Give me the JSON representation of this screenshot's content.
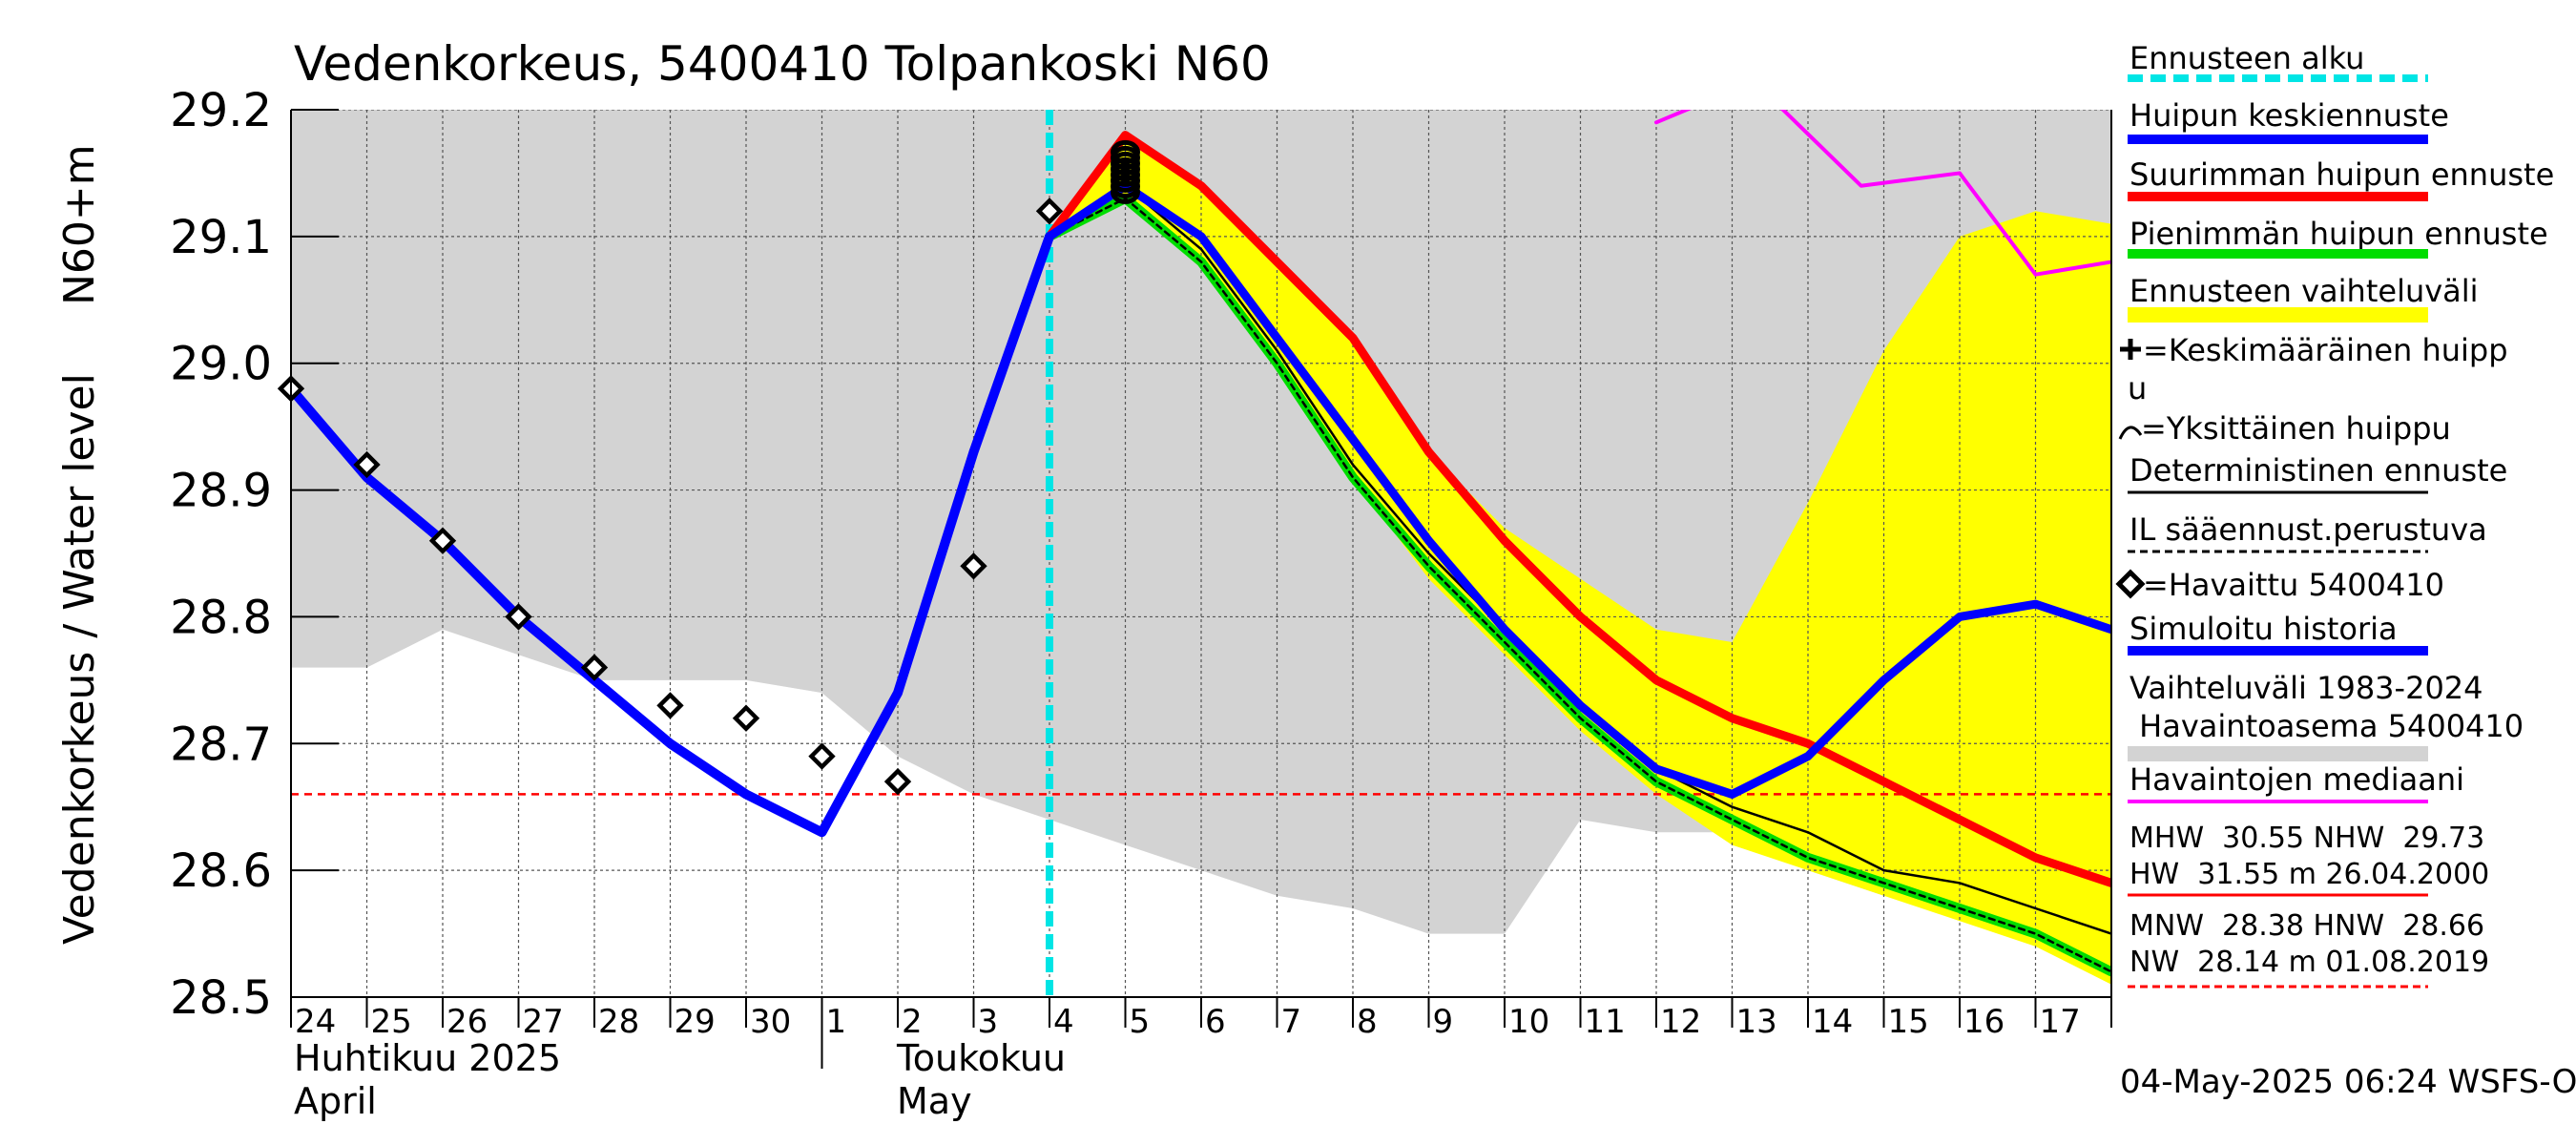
{
  "chart_data": {
    "type": "line",
    "title": "Vedenkorkeus, 5400410 Tolpankoski N60",
    "ylabel_main": "Vedenkorkeus / Water level",
    "ylabel_unit": "N60+m",
    "ylim": [
      28.5,
      29.2
    ],
    "xlim": [
      0,
      24
    ],
    "y_ticks": [
      "28.5",
      "28.6",
      "28.7",
      "28.8",
      "28.9",
      "29.0",
      "29.1",
      "29.2"
    ],
    "y_tick_values": [
      28.5,
      28.6,
      28.7,
      28.8,
      28.9,
      29.0,
      29.1,
      29.2
    ],
    "x_days": [
      "24",
      "25",
      "26",
      "27",
      "28",
      "29",
      "30",
      "1",
      "2",
      "3",
      "4",
      "5",
      "6",
      "7",
      "8",
      "9",
      "10",
      "11",
      "12",
      "13",
      "14",
      "15",
      "16",
      "17"
    ],
    "month_labels": {
      "april_fi": "Huhtikuu  2025",
      "april_en": "April",
      "may_fi": "Toukokuu",
      "may_en": "May"
    },
    "forecast_start_x": 10.0,
    "grid": true,
    "legend_position": "right",
    "legend": {
      "forecast_start": "Ennusteen alku",
      "mean_peak": "Huipun keskiennuste",
      "max_peak": "Suurimman huipun ennuste",
      "min_peak": "Pienimmän huipun ennuste",
      "range": "Ennusteen vaihteluväli",
      "avg_peak_line1": "=Keskimääräinen huipp",
      "avg_peak_line2": "u",
      "single_peak": "=Yksittäinen huippu",
      "deterministic": "Deterministinen ennuste",
      "il": "IL sääennust.perustuva",
      "observed": "=Havaittu 5400410",
      "simulated": "Simuloitu historia",
      "hist_range_1": "Vaihteluväli 1983-2024",
      "hist_range_2": " Havaintoasema 5400410",
      "median": "Havaintojen mediaani",
      "stats_1": "MHW  30.55 NHW  29.73",
      "stats_2": "HW  31.55 m 26.04.2000",
      "stats_3": "MNW  28.38 HNW  28.66",
      "stats_4": "NW  28.14 m 01.08.2019"
    },
    "footer": "04-May-2025 06:24 WSFS-O",
    "colors": {
      "forecast_start": "#00e5e5",
      "mean_peak": "#0000ff",
      "max_peak": "#ff0000",
      "min_peak": "#00dd00",
      "range": "#ffff00",
      "history_band": "#d3d3d3",
      "median": "#ff00ff",
      "hnw": "#ff0000"
    },
    "hnw_level": 28.66,
    "history_band": {
      "x": [
        0,
        1,
        2,
        3,
        4,
        5,
        6,
        7,
        8,
        9,
        10,
        11,
        12,
        13,
        14,
        15,
        16,
        17,
        18,
        19,
        20,
        21,
        22,
        23,
        24
      ],
      "upper": [
        29.2,
        29.2,
        29.2,
        29.2,
        29.2,
        29.2,
        29.2,
        29.2,
        29.2,
        29.2,
        29.2,
        29.2,
        29.2,
        29.2,
        29.2,
        29.2,
        29.2,
        29.2,
        29.2,
        29.2,
        29.2,
        29.2,
        29.2,
        29.2,
        29.2
      ],
      "lower": [
        28.76,
        28.76,
        28.79,
        28.77,
        28.75,
        28.75,
        28.75,
        28.74,
        28.69,
        28.66,
        28.64,
        28.62,
        28.6,
        28.58,
        28.57,
        28.55,
        28.55,
        28.64,
        28.63,
        28.63,
        28.6,
        28.58,
        28.57,
        28.57,
        28.66
      ]
    },
    "forecast_range": {
      "x": [
        10.0,
        11,
        12,
        13,
        14,
        15,
        16,
        17,
        18,
        19,
        20,
        21,
        22,
        23,
        24
      ],
      "upper": [
        29.1,
        29.18,
        29.14,
        29.08,
        29.02,
        28.93,
        28.87,
        28.83,
        28.79,
        28.78,
        28.89,
        29.01,
        29.1,
        29.12,
        29.11
      ],
      "lower": [
        29.1,
        29.13,
        29.08,
        29.0,
        28.91,
        28.83,
        28.77,
        28.71,
        28.66,
        28.62,
        28.6,
        28.58,
        28.56,
        28.54,
        28.51
      ]
    },
    "series": [
      {
        "name": "Simuloitu historia",
        "x": [
          0,
          1,
          2,
          3,
          4,
          5,
          6,
          7,
          8,
          9,
          10
        ],
        "y": [
          28.98,
          28.91,
          28.86,
          28.8,
          28.75,
          28.7,
          28.66,
          28.63,
          28.74,
          28.93,
          29.1
        ]
      },
      {
        "name": "Huipun keskiennuste",
        "x": [
          10.0,
          11,
          12,
          13,
          14,
          15,
          16,
          17,
          18,
          19,
          20,
          21,
          22,
          23,
          24
        ],
        "y": [
          29.1,
          29.14,
          29.1,
          29.02,
          28.94,
          28.86,
          28.79,
          28.73,
          28.68,
          28.66,
          28.69,
          28.75,
          28.8,
          28.81,
          28.79
        ]
      },
      {
        "name": "Suurimman huipun ennuste",
        "x": [
          10.0,
          11,
          12,
          13,
          14,
          15,
          16,
          17,
          18,
          19,
          20,
          21,
          22,
          23,
          24
        ],
        "y": [
          29.1,
          29.18,
          29.14,
          29.08,
          29.02,
          28.93,
          28.86,
          28.8,
          28.75,
          28.72,
          28.7,
          28.67,
          28.64,
          28.61,
          28.59
        ]
      },
      {
        "name": "Pienimmän huipun ennuste",
        "x": [
          10.0,
          11,
          12,
          13,
          14,
          15,
          16,
          17,
          18,
          19,
          20,
          21,
          22,
          23,
          24
        ],
        "y": [
          29.1,
          29.13,
          29.08,
          29.0,
          28.91,
          28.84,
          28.78,
          28.72,
          28.67,
          28.64,
          28.61,
          28.59,
          28.57,
          28.55,
          28.52
        ]
      },
      {
        "name": "Deterministinen ennuste",
        "x": [
          10.0,
          11,
          12,
          13,
          14,
          15,
          16,
          17,
          18,
          19,
          20,
          21,
          22,
          23,
          24
        ],
        "y": [
          29.1,
          29.14,
          29.09,
          29.01,
          28.92,
          28.85,
          28.79,
          28.73,
          28.68,
          28.65,
          28.63,
          28.6,
          28.59,
          28.57,
          28.55
        ]
      },
      {
        "name": "IL sääennust.perustuva",
        "x": [
          10.0,
          11,
          12,
          13,
          14,
          15,
          16,
          17,
          18,
          19,
          20,
          21,
          22,
          23,
          24
        ],
        "y": [
          29.1,
          29.13,
          29.08,
          29.0,
          28.91,
          28.84,
          28.78,
          28.72,
          28.67,
          28.64,
          28.61,
          28.59,
          28.57,
          28.55,
          28.52
        ]
      },
      {
        "name": "Havaintojen mediaani",
        "x": [
          18.0,
          18.8,
          19.5,
          20.7,
          22.0,
          23.0,
          24.0
        ],
        "y": [
          29.19,
          29.21,
          29.21,
          29.14,
          29.15,
          29.07,
          29.08
        ]
      }
    ],
    "observed": {
      "x": [
        0,
        1,
        2,
        3,
        4,
        5,
        6,
        7,
        8,
        9,
        10
      ],
      "y": [
        28.98,
        28.92,
        28.86,
        28.8,
        28.76,
        28.73,
        28.72,
        28.69,
        28.67,
        28.84,
        29.12
      ]
    },
    "peak_marker": {
      "x": 11.0,
      "y": 29.15
    }
  }
}
